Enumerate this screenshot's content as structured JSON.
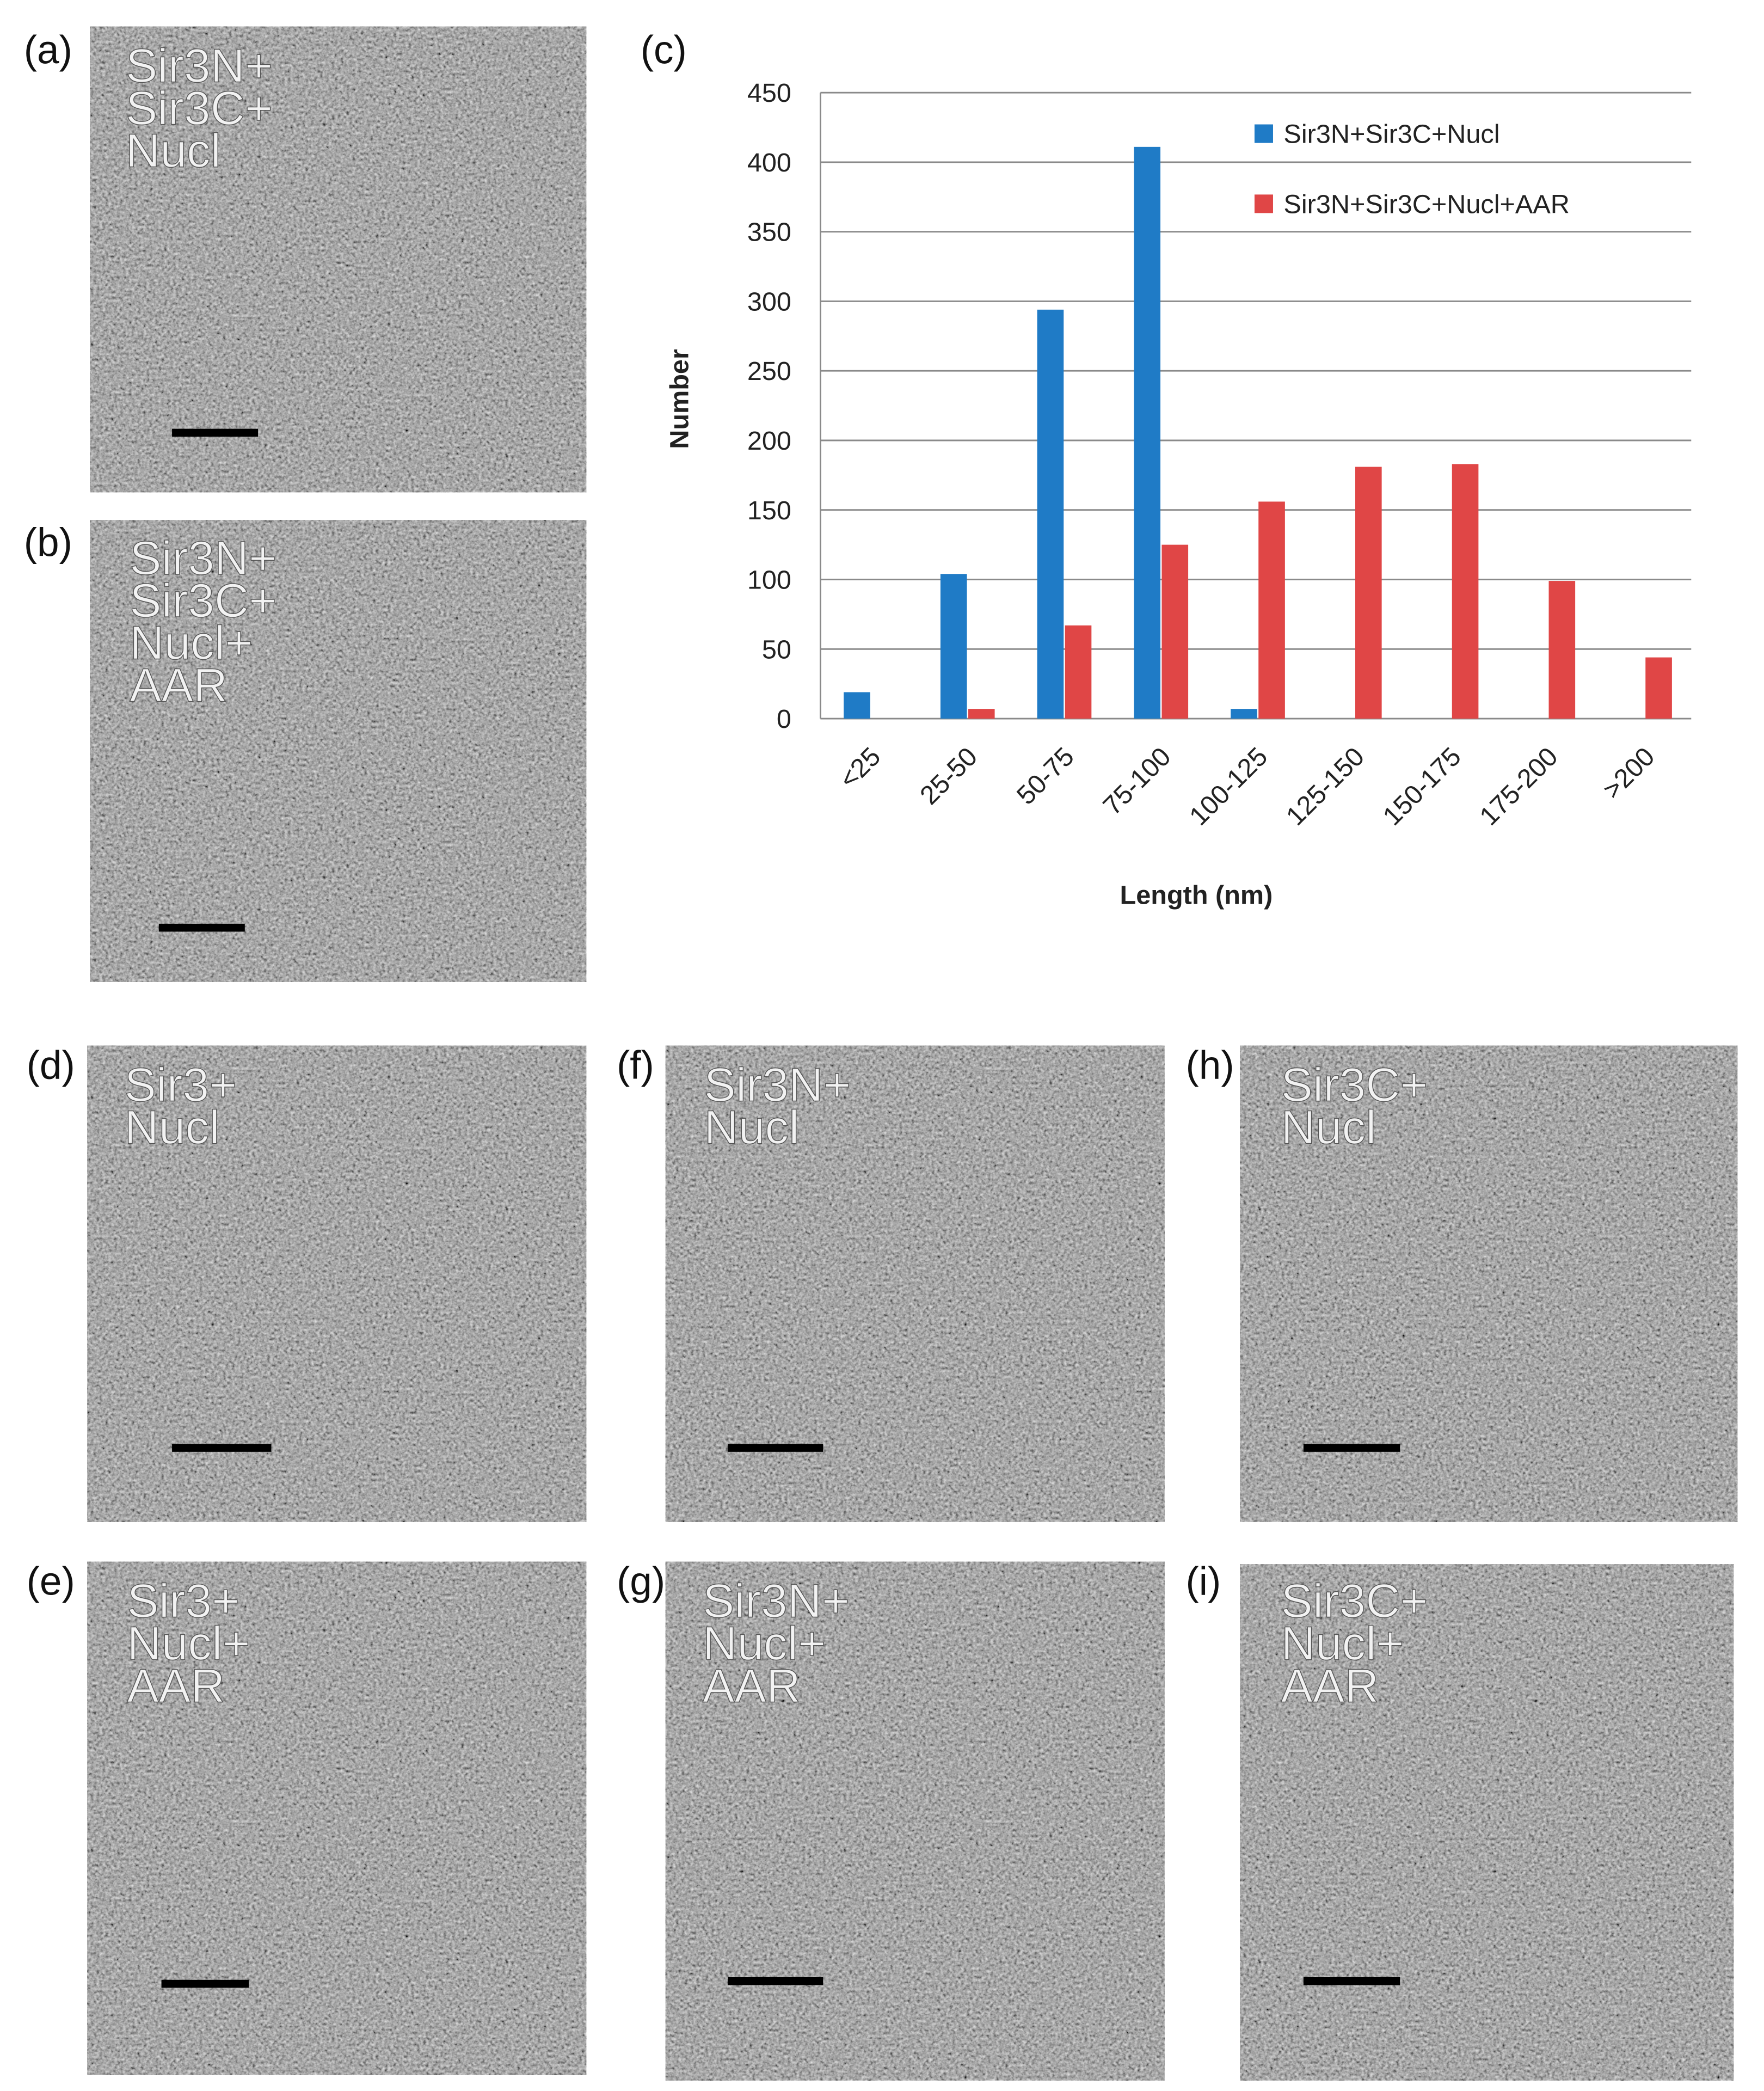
{
  "panels": [
    {
      "label": "(a)",
      "text": [
        "Sir3N+",
        "Sir3C+",
        "Nucl"
      ]
    },
    {
      "label": "(b)",
      "text": [
        "Sir3N+",
        "Sir3C+",
        "Nucl+",
        "AAR"
      ]
    },
    {
      "label": "(d)",
      "text": [
        "Sir3+",
        "Nucl"
      ]
    },
    {
      "label": "(f)",
      "text": [
        "Sir3N+",
        "Nucl"
      ]
    },
    {
      "label": "(h)",
      "text": [
        "Sir3C+",
        "Nucl"
      ]
    },
    {
      "label": "(e)",
      "text": [
        "Sir3+",
        "Nucl+",
        "AAR"
      ]
    },
    {
      "label": "(g)",
      "text": [
        "Sir3N+",
        "Nucl+",
        "AAR"
      ]
    },
    {
      "label": "(i)",
      "text": [
        "Sir3C+",
        "Nucl+",
        "AAR"
      ]
    }
  ],
  "chart_data": {
    "type": "bar",
    "panel_label": "(c)",
    "x_label": "Length (nm)",
    "y_label": "Number",
    "categories": [
      "<25",
      "25-50",
      "50-75",
      "75-100",
      "100-125",
      "125-150",
      "150-175",
      "175-200",
      ">200"
    ],
    "series": [
      {
        "name": "Sir3N+Sir3C+Nucl",
        "color": "#1f7bc6",
        "values": [
          19,
          104,
          294,
          411,
          7,
          0,
          0,
          0,
          0
        ]
      },
      {
        "name": "Sir3N+Sir3C+Nucl+AAR",
        "color": "#e04646",
        "values": [
          0,
          7,
          67,
          125,
          156,
          181,
          183,
          99,
          44
        ]
      }
    ],
    "ylim": [
      0,
      450
    ],
    "yticks": [
      0,
      50,
      100,
      150,
      200,
      250,
      300,
      350,
      400,
      450
    ],
    "grid": true,
    "legend": "upper right"
  }
}
